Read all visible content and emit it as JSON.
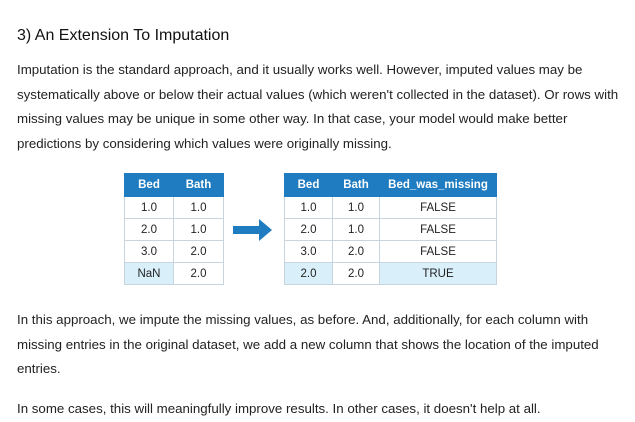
{
  "heading": "3) An Extension To Imputation",
  "paragraph1": "Imputation is the standard approach, and it usually works well. However, imputed values may be systematically above or below their actual values (which weren't collected in the dataset). Or rows with missing values may be unique in some other way. In that case, your model would make better predictions by considering which values were originally missing.",
  "table_left": {
    "headers": [
      "Bed",
      "Bath"
    ],
    "rows": [
      [
        "1.0",
        "1.0"
      ],
      [
        "2.0",
        "1.0"
      ],
      [
        "3.0",
        "2.0"
      ],
      [
        "NaN",
        "2.0"
      ]
    ]
  },
  "arrow_icon": "right-arrow-icon",
  "arrow_color": "#1f7cc1",
  "table_right": {
    "headers": [
      "Bed",
      "Bath",
      "Bed_was_missing"
    ],
    "rows": [
      [
        "1.0",
        "1.0",
        "FALSE"
      ],
      [
        "2.0",
        "1.0",
        "FALSE"
      ],
      [
        "3.0",
        "2.0",
        "FALSE"
      ],
      [
        "2.0",
        "2.0",
        "TRUE"
      ]
    ]
  },
  "highlight_color": "#d9f0fb",
  "paragraph2": "In this approach, we impute the missing values, as before. And, additionally, for each column with missing entries in the original dataset, we add a new column that shows the location of the imputed entries.",
  "paragraph3": "In some cases, this will meaningfully improve results. In other cases, it doesn't help at all."
}
